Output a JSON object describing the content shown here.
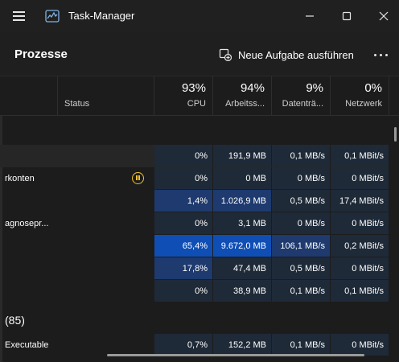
{
  "window": {
    "title": "Task-Manager",
    "app_icon": "performance-graph-icon",
    "controls": [
      "minimize-icon",
      "maximize-icon",
      "close-icon"
    ]
  },
  "header": {
    "page_title": "Prozesse",
    "new_task_label": "Neue Aufgabe ausführen",
    "new_task_icon": "new-task-icon",
    "more_icon": "more-options-icon"
  },
  "columns": {
    "status": {
      "label": "Status"
    },
    "cpu": {
      "pct": "93%",
      "label": "CPU"
    },
    "memory": {
      "pct": "94%",
      "label": "Arbeitss..."
    },
    "disk": {
      "pct": "9%",
      "label": "Datenträ..."
    },
    "network": {
      "pct": "0%",
      "label": "Netzwerk"
    }
  },
  "groups": {
    "background": {
      "label": "(85)"
    }
  },
  "rows": [
    {
      "name": "",
      "status": "",
      "cpu": "0%",
      "memory": "191,9 MB",
      "disk": "0,1 MB/s",
      "network": "0,1 MBit/s"
    },
    {
      "name": "rkonten",
      "status": "paused",
      "cpu": "0%",
      "memory": "0 MB",
      "disk": "0 MB/s",
      "network": "0 MBit/s"
    },
    {
      "name": "",
      "status": "",
      "cpu": "1,4%",
      "memory": "1.026,9 MB",
      "disk": "0,5 MB/s",
      "network": "17,4 MBit/s"
    },
    {
      "name": "agnosepr...",
      "status": "",
      "cpu": "0%",
      "memory": "3,1 MB",
      "disk": "0 MB/s",
      "network": "0 MBit/s"
    },
    {
      "name": "",
      "status": "",
      "cpu": "65,4%",
      "memory": "9.672,0 MB",
      "disk": "106,1 MB/s",
      "network": "0,2 MBit/s"
    },
    {
      "name": "",
      "status": "",
      "cpu": "17,8%",
      "memory": "47,4 MB",
      "disk": "0,5 MB/s",
      "network": "0 MBit/s"
    },
    {
      "name": "",
      "status": "",
      "cpu": "0%",
      "memory": "38,9 MB",
      "disk": "0,1 MB/s",
      "network": "0,1 MBit/s"
    },
    {
      "name": "Executable",
      "status": "",
      "cpu": "0,7%",
      "memory": "152,2 MB",
      "disk": "0,1 MB/s",
      "network": "0 MBit/s"
    }
  ],
  "colors": {
    "background": "#1c1c1c",
    "heat_low": "#1f2a38",
    "heat_mid": "#1e3a6e",
    "heat_high": "#0f4fb5",
    "paused_status": "#f0c230"
  }
}
